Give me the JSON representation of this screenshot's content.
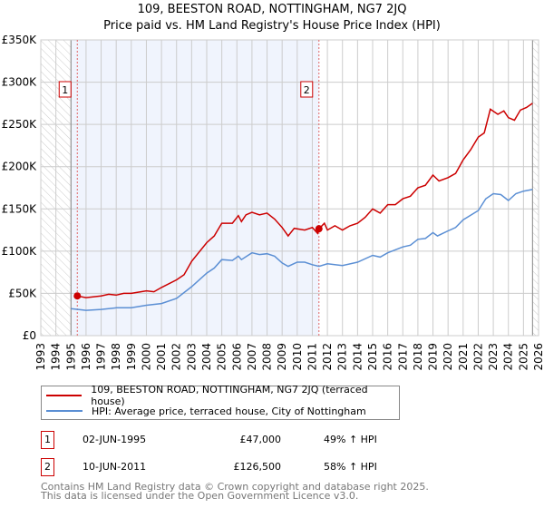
{
  "title_line1": "109, BEESTON ROAD, NOTTINGHAM, NG7 2JQ",
  "title_line2": "Price paid vs. HM Land Registry's House Price Index (HPI)",
  "chart_data": {
    "type": "line",
    "xlim": [
      1993,
      2026
    ],
    "ylim": [
      0,
      350000
    ],
    "x_ticks": [
      1993,
      1994,
      1995,
      1996,
      1997,
      1998,
      1999,
      2000,
      2001,
      2002,
      2003,
      2004,
      2005,
      2006,
      2007,
      2008,
      2009,
      2010,
      2011,
      2012,
      2013,
      2014,
      2015,
      2016,
      2017,
      2018,
      2019,
      2020,
      2021,
      2022,
      2023,
      2024,
      2025,
      2026
    ],
    "y_ticks": [
      0,
      50000,
      100000,
      150000,
      200000,
      250000,
      300000,
      350000
    ],
    "y_tick_labels": [
      "£0",
      "£50K",
      "£100K",
      "£150K",
      "£200K",
      "£250K",
      "£300K",
      "£350K"
    ],
    "grid": true,
    "hatched_ranges": [
      [
        1993,
        1995
      ],
      [
        2025.6,
        2026
      ]
    ],
    "shaded_range": [
      1995,
      2011.44
    ],
    "series": [
      {
        "name": "109, BEESTON ROAD, NOTTINGHAM, NG7 2JQ (terraced house)",
        "color": "#cc0000",
        "x": [
          1995.4,
          1996,
          1997,
          1997.5,
          1998,
          1998.5,
          1999,
          2000,
          2000.5,
          2001,
          2002,
          2002.5,
          2003,
          2004,
          2004.5,
          2005,
          2005.7,
          2006.1,
          2006.3,
          2006.6,
          2007,
          2007.5,
          2008,
          2008.5,
          2009,
          2009.4,
          2009.8,
          2010.5,
          2011,
          2011.35,
          2011.45,
          2011.8,
          2012,
          2012.5,
          2013,
          2013.5,
          2014,
          2014.5,
          2015,
          2015.5,
          2016,
          2016.5,
          2017,
          2017.5,
          2018,
          2018.5,
          2019,
          2019.4,
          2020,
          2020.5,
          2021,
          2021.5,
          2022,
          2022.4,
          2022.8,
          2023.3,
          2023.7,
          2024,
          2024.4,
          2024.8,
          2025.2,
          2025.6
        ],
        "y": [
          47000,
          45000,
          47000,
          49000,
          48000,
          50000,
          50000,
          53000,
          52000,
          57000,
          66000,
          72000,
          88000,
          110000,
          118000,
          133000,
          133000,
          142000,
          135000,
          143000,
          146000,
          143000,
          145000,
          138000,
          128000,
          118000,
          127000,
          125000,
          128000,
          121000,
          126500,
          133000,
          125000,
          130000,
          125000,
          130000,
          133000,
          140000,
          150000,
          145000,
          155000,
          155000,
          162000,
          165000,
          175000,
          178000,
          190000,
          183000,
          187000,
          192000,
          208000,
          220000,
          235000,
          240000,
          268000,
          262000,
          266000,
          258000,
          255000,
          267000,
          270000,
          275000
        ]
      },
      {
        "name": "HPI: Average price, terraced house, City of Nottingham",
        "color": "#5b8fd4",
        "x": [
          1995,
          1996,
          1997,
          1998,
          1999,
          2000,
          2001,
          2002,
          2003,
          2004,
          2004.5,
          2005,
          2005.7,
          2006.1,
          2006.3,
          2007,
          2007.5,
          2008,
          2008.5,
          2009,
          2009.4,
          2010,
          2010.5,
          2011,
          2011.45,
          2012,
          2013,
          2014,
          2015,
          2015.5,
          2016,
          2017,
          2017.5,
          2018,
          2018.5,
          2019,
          2019.3,
          2020,
          2020.5,
          2021,
          2022,
          2022.5,
          2023,
          2023.5,
          2024,
          2024.5,
          2025,
          2025.6
        ],
        "y": [
          32000,
          30000,
          31000,
          33000,
          33000,
          36000,
          38000,
          44000,
          58000,
          74000,
          80000,
          90000,
          89000,
          94000,
          90000,
          98000,
          96000,
          97000,
          94000,
          86000,
          82000,
          87000,
          87000,
          84000,
          82000,
          85000,
          83000,
          87000,
          95000,
          93000,
          98000,
          105000,
          107000,
          114000,
          115000,
          122000,
          118000,
          124000,
          128000,
          137000,
          148000,
          162000,
          168000,
          167000,
          160000,
          168000,
          171000,
          173000
        ]
      }
    ],
    "annotations": [
      {
        "label": "1",
        "x": 1995.42,
        "price": 47000
      },
      {
        "label": "2",
        "x": 2011.44,
        "price": 126500
      }
    ]
  },
  "legend": {
    "red": "109, BEESTON ROAD, NOTTINGHAM, NG7 2JQ (terraced house)",
    "blue": "HPI: Average price, terraced house, City of Nottingham"
  },
  "transactions": [
    {
      "num": "1",
      "date": "02-JUN-1995",
      "price": "£47,000",
      "hpi": "49% ↑ HPI"
    },
    {
      "num": "2",
      "date": "10-JUN-2011",
      "price": "£126,500",
      "hpi": "58% ↑ HPI"
    }
  ],
  "footer_line1": "Contains HM Land Registry data © Crown copyright and database right 2025.",
  "footer_line2": "This data is licensed under the Open Government Licence v3.0."
}
